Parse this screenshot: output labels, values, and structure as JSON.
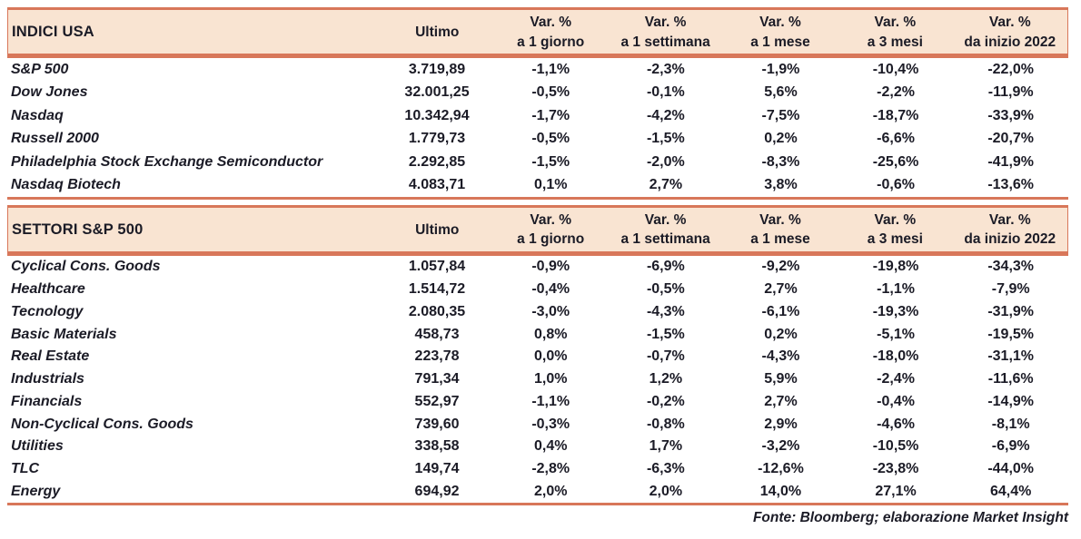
{
  "colors": {
    "accent_rule": "#d8775a",
    "header_background": "#f9e4d2",
    "text": "#1b1b26",
    "page_background": "#ffffff"
  },
  "columns": {
    "ultimo": "Ultimo",
    "var_headers": [
      {
        "line1": "Var. %",
        "line2": "a 1 giorno"
      },
      {
        "line1": "Var. %",
        "line2": "a 1 settimana"
      },
      {
        "line1": "Var. %",
        "line2": "a 1 mese"
      },
      {
        "line1": "Var. %",
        "line2": "a 3 mesi"
      },
      {
        "line1": "Var. %",
        "line2": "da inizio 2022"
      }
    ]
  },
  "tables": [
    {
      "title": "INDICI USA",
      "rows": [
        {
          "name": "S&P 500",
          "ultimo": "3.719,89",
          "vars": [
            "-1,1%",
            "-2,3%",
            "-1,9%",
            "-10,4%",
            "-22,0%"
          ]
        },
        {
          "name": "Dow Jones",
          "ultimo": "32.001,25",
          "vars": [
            "-0,5%",
            "-0,1%",
            "5,6%",
            "-2,2%",
            "-11,9%"
          ]
        },
        {
          "name": "Nasdaq",
          "ultimo": "10.342,94",
          "vars": [
            "-1,7%",
            "-4,2%",
            "-7,5%",
            "-18,7%",
            "-33,9%"
          ]
        },
        {
          "name": "Russell 2000",
          "ultimo": "1.779,73",
          "vars": [
            "-0,5%",
            "-1,5%",
            "0,2%",
            "-6,6%",
            "-20,7%"
          ]
        },
        {
          "name": "Philadelphia Stock Exchange Semiconductor",
          "ultimo": "2.292,85",
          "vars": [
            "-1,5%",
            "-2,0%",
            "-8,3%",
            "-25,6%",
            "-41,9%"
          ]
        },
        {
          "name": "Nasdaq Biotech",
          "ultimo": "4.083,71",
          "vars": [
            "0,1%",
            "2,7%",
            "3,8%",
            "-0,6%",
            "-13,6%"
          ]
        }
      ]
    },
    {
      "title": "SETTORI S&P 500",
      "rows": [
        {
          "name": "Cyclical Cons. Goods",
          "ultimo": "1.057,84",
          "vars": [
            "-0,9%",
            "-6,9%",
            "-9,2%",
            "-19,8%",
            "-34,3%"
          ]
        },
        {
          "name": "Healthcare",
          "ultimo": "1.514,72",
          "vars": [
            "-0,4%",
            "-0,5%",
            "2,7%",
            "-1,1%",
            "-7,9%"
          ]
        },
        {
          "name": "Tecnology",
          "ultimo": "2.080,35",
          "vars": [
            "-3,0%",
            "-4,3%",
            "-6,1%",
            "-19,3%",
            "-31,9%"
          ]
        },
        {
          "name": "Basic Materials",
          "ultimo": "458,73",
          "vars": [
            "0,8%",
            "-1,5%",
            "0,2%",
            "-5,1%",
            "-19,5%"
          ]
        },
        {
          "name": "Real Estate",
          "ultimo": "223,78",
          "vars": [
            "0,0%",
            "-0,7%",
            "-4,3%",
            "-18,0%",
            "-31,1%"
          ]
        },
        {
          "name": "Industrials",
          "ultimo": "791,34",
          "vars": [
            "1,0%",
            "1,2%",
            "5,9%",
            "-2,4%",
            "-11,6%"
          ]
        },
        {
          "name": "Financials",
          "ultimo": "552,97",
          "vars": [
            "-1,1%",
            "-0,2%",
            "2,7%",
            "-0,4%",
            "-14,9%"
          ]
        },
        {
          "name": "Non-Cyclical Cons. Goods",
          "ultimo": "739,60",
          "vars": [
            "-0,3%",
            "-0,8%",
            "2,9%",
            "-4,6%",
            "-8,1%"
          ]
        },
        {
          "name": "Utilities",
          "ultimo": "338,58",
          "vars": [
            "0,4%",
            "1,7%",
            "-3,2%",
            "-10,5%",
            "-6,9%"
          ]
        },
        {
          "name": "TLC",
          "ultimo": "149,74",
          "vars": [
            "-2,8%",
            "-6,3%",
            "-12,6%",
            "-23,8%",
            "-44,0%"
          ]
        },
        {
          "name": "Energy",
          "ultimo": "694,92",
          "vars": [
            "2,0%",
            "2,0%",
            "14,0%",
            "27,1%",
            "64,4%"
          ]
        }
      ]
    }
  ],
  "footer": "Fonte: Bloomberg; elaborazione Market Insight"
}
